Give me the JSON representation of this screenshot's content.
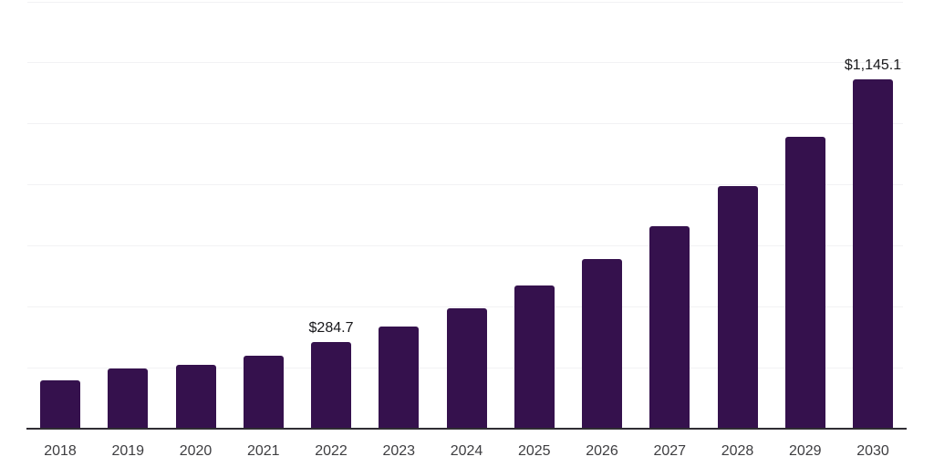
{
  "chart_data": {
    "type": "bar",
    "categories": [
      "2018",
      "2019",
      "2020",
      "2021",
      "2022",
      "2023",
      "2024",
      "2025",
      "2026",
      "2027",
      "2028",
      "2029",
      "2030"
    ],
    "values": [
      159,
      196,
      208,
      240,
      284.7,
      336,
      395,
      470,
      557,
      663,
      797,
      956,
      1145.1
    ],
    "labeled_points": [
      {
        "category": "2022",
        "label": "$284.7"
      },
      {
        "category": "2030",
        "label": "$1,145.1"
      }
    ],
    "xlabel": "",
    "ylabel": "",
    "ylim": [
      0,
      1400
    ],
    "gridline_step": 200,
    "grid": "horizontal-only",
    "legend": "none",
    "colors": {
      "bar": "#35114d",
      "axis_line": "#302d33",
      "gridline": "#f2f2f4",
      "tick_label": "#3e3e41",
      "data_label": "#17171a",
      "background": "#ffffff"
    }
  }
}
